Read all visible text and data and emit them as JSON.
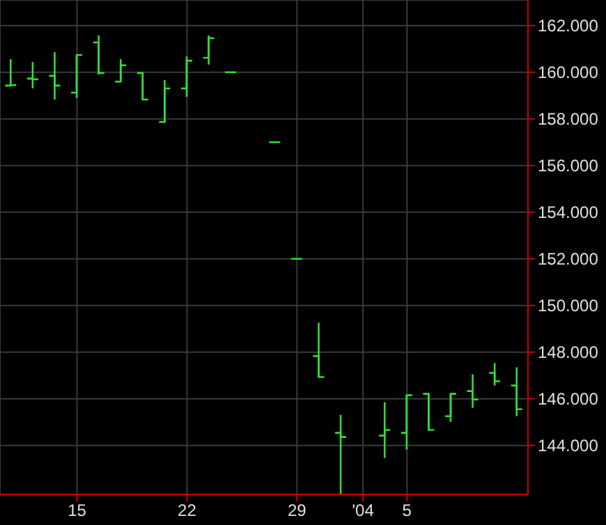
{
  "chart_data": {
    "type": "candlestick",
    "categories": [
      null,
      null,
      null,
      "15",
      null,
      null,
      null,
      null,
      "22",
      null,
      null,
      null,
      null,
      "29",
      null,
      null,
      "'04",
      null,
      "5",
      null,
      null,
      null,
      null,
      null
    ],
    "ohlc": [
      [
        159.43,
        160.56,
        159.43,
        159.45
      ],
      [
        159.73,
        160.44,
        159.31,
        159.7
      ],
      [
        159.85,
        160.86,
        158.83,
        159.43
      ],
      [
        159.13,
        160.74,
        158.9,
        160.74
      ],
      [
        161.28,
        161.58,
        159.9,
        159.97
      ],
      [
        159.6,
        160.56,
        159.6,
        160.3
      ],
      [
        159.97,
        159.97,
        158.83,
        158.83
      ],
      [
        157.87,
        159.67,
        157.87,
        159.31
      ],
      [
        159.31,
        160.68,
        158.95,
        160.5
      ],
      [
        160.62,
        161.58,
        160.33,
        161.46
      ],
      [
        160.0,
        160.0,
        160.0,
        160.0
      ],
      null,
      [
        157.0,
        157.0,
        157.0,
        157.0
      ],
      [
        152.0,
        152.0,
        152.0,
        152.0
      ],
      [
        147.83,
        149.26,
        146.93,
        146.93
      ],
      [
        144.54,
        145.31,
        141.9,
        144.36
      ],
      null,
      [
        144.42,
        145.85,
        143.46,
        144.66
      ],
      [
        144.54,
        146.15,
        143.82,
        146.15
      ],
      [
        146.21,
        146.21,
        144.66,
        144.66
      ],
      [
        145.25,
        146.21,
        145.01,
        146.21
      ],
      [
        146.33,
        147.05,
        145.61,
        145.97
      ],
      [
        147.11,
        147.53,
        146.57,
        146.75
      ],
      [
        146.57,
        147.35,
        145.25,
        145.55
      ]
    ],
    "color": "#33dd33",
    "ylim": [
      141.9,
      163.1
    ],
    "yticks": [
      {
        "value": 144,
        "label": "144.000"
      },
      {
        "value": 146,
        "label": "146.000"
      },
      {
        "value": 148,
        "label": "148.000"
      },
      {
        "value": 150,
        "label": "150.000"
      },
      {
        "value": 152,
        "label": "152.000"
      },
      {
        "value": 154,
        "label": "154.000"
      },
      {
        "value": 156,
        "label": "156.000"
      },
      {
        "value": 158,
        "label": "158.000"
      },
      {
        "value": 160,
        "label": "160.000"
      },
      {
        "value": 162,
        "label": "162.000"
      }
    ],
    "grid": true
  }
}
